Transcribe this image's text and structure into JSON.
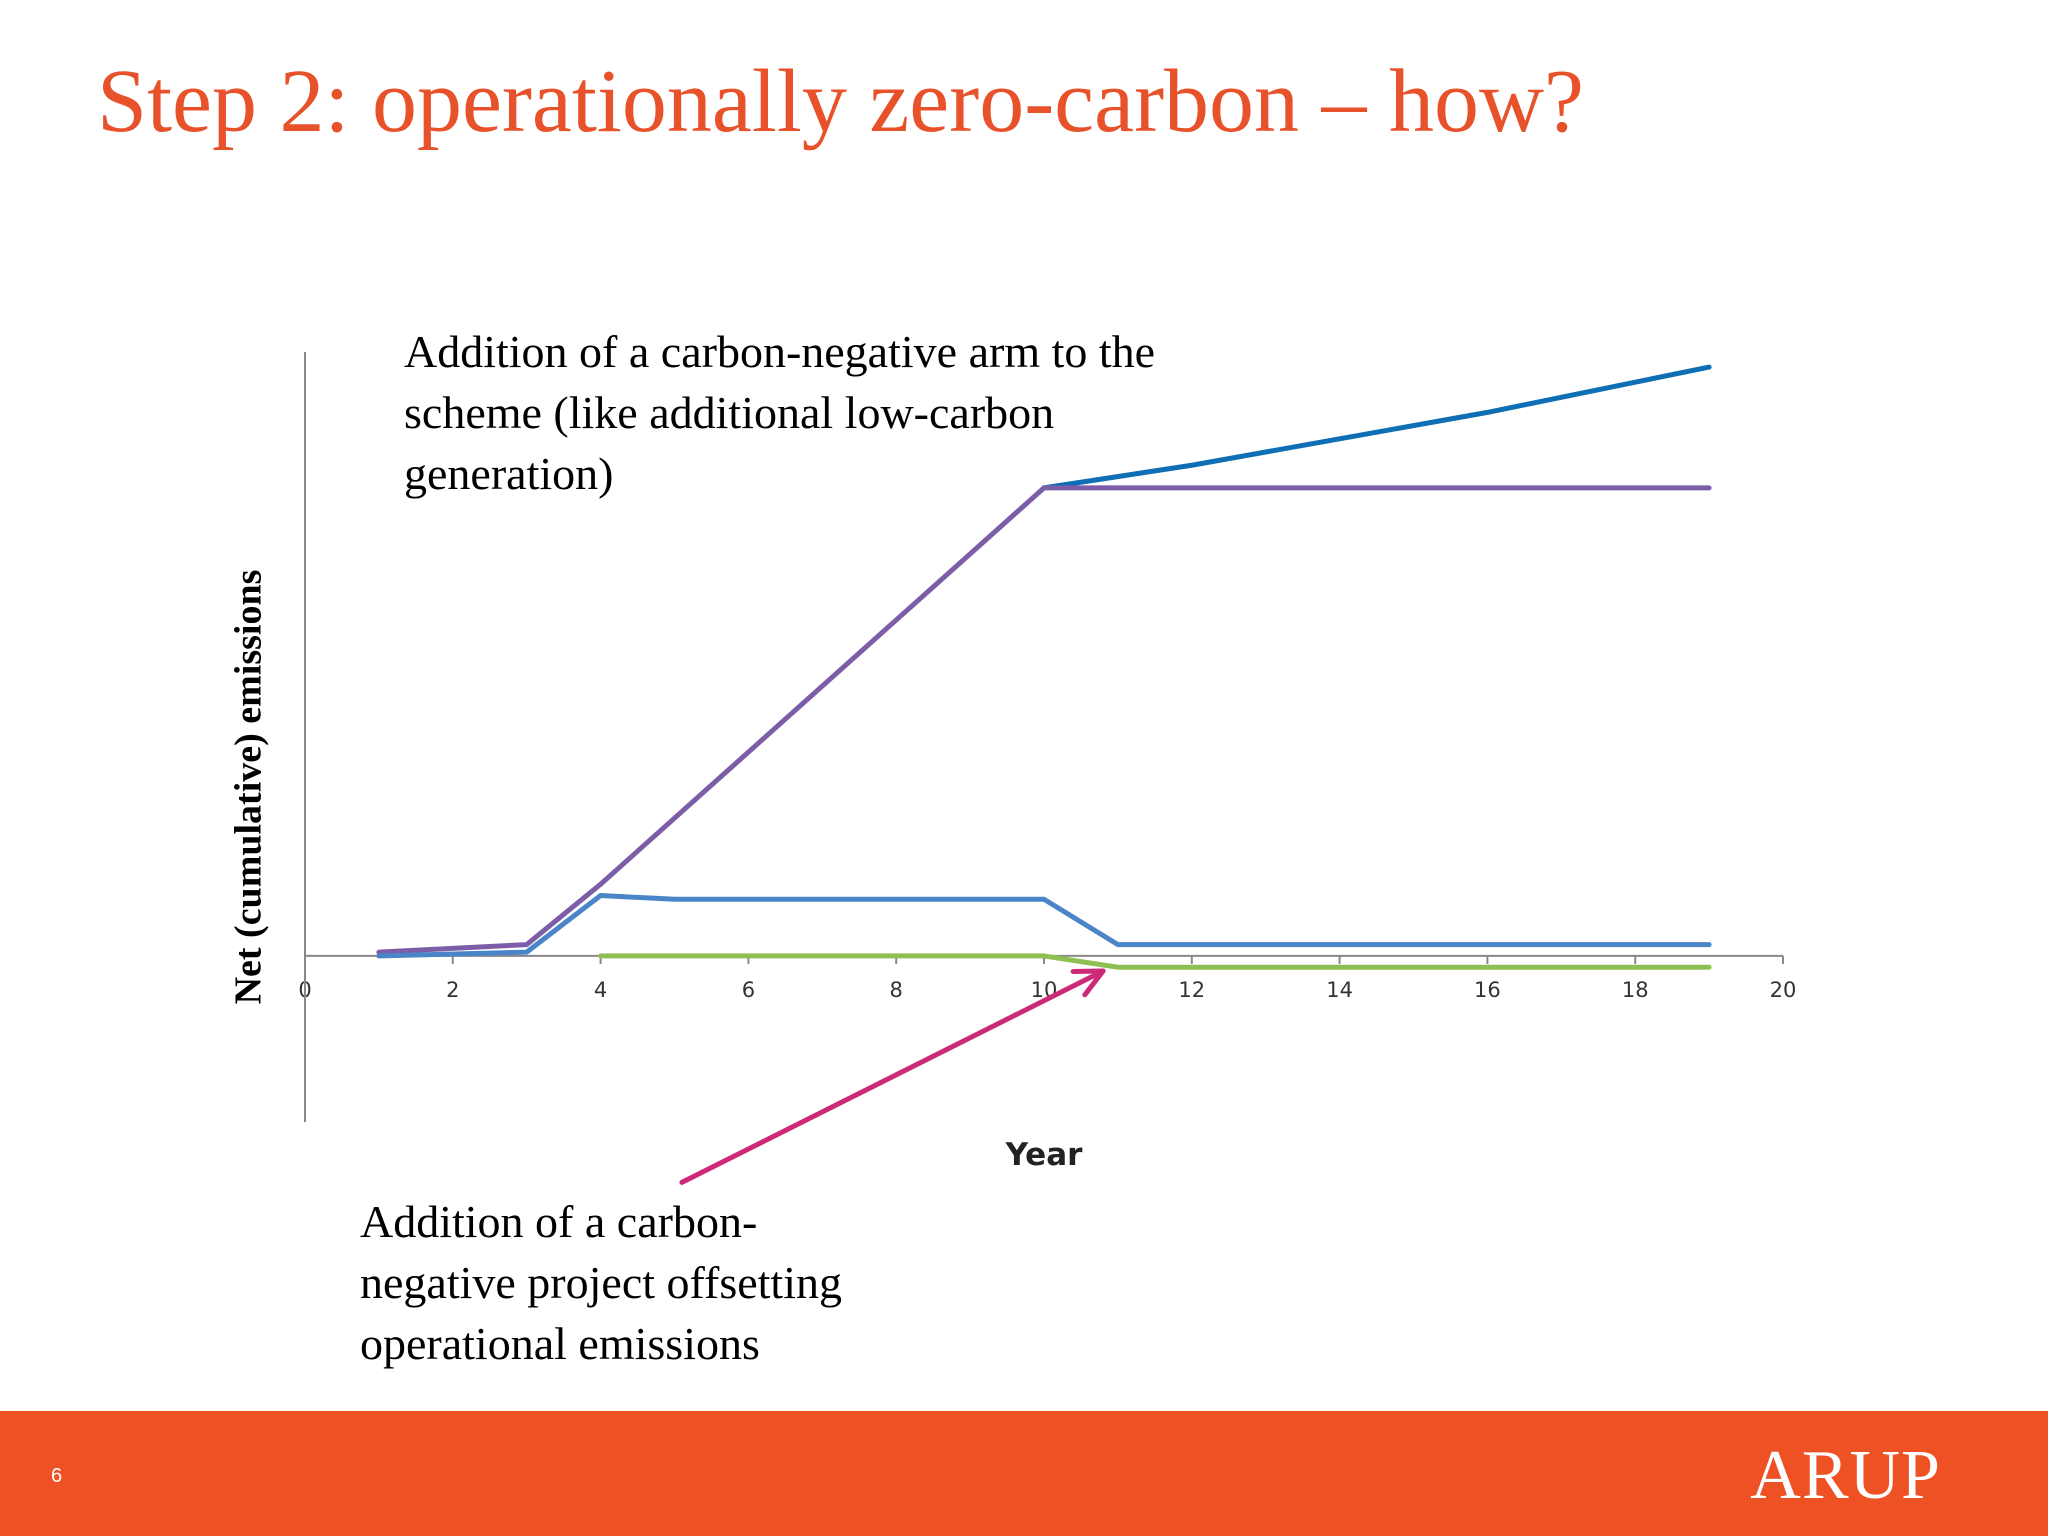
{
  "slide": {
    "title": "Step 2: operationally zero-carbon – how?",
    "page_number": "6",
    "logo_text": "ARUP",
    "colors": {
      "accent": "#e8522b",
      "footer": "#ee5123"
    }
  },
  "annotations": {
    "top": [
      "Addition of a carbon-negative arm to the",
      "scheme (like additional low-carbon",
      "generation)"
    ],
    "bottom": [
      "Addition of a carbon-",
      "negative project offsetting",
      "operational emissions"
    ]
  },
  "chart_data": {
    "type": "line",
    "title": "",
    "xlabel": "Year",
    "ylabel": "Net (cumulative) emissions",
    "xlim": [
      0,
      20
    ],
    "ylim": [
      -2.2,
      8
    ],
    "x_ticks": [
      "0",
      "2",
      "4",
      "6",
      "8",
      "10",
      "12",
      "14",
      "16",
      "18",
      "20"
    ],
    "y_ticks_shown": false,
    "grid": false,
    "legend": "none",
    "series": [
      {
        "color": "#0e6fb5",
        "x": [
          10,
          12,
          14,
          16,
          18,
          19
        ],
        "y": [
          6.2,
          6.5,
          6.85,
          7.2,
          7.6,
          7.8
        ]
      },
      {
        "color": "#7b5ea7",
        "x": [
          1,
          3,
          4,
          10,
          19
        ],
        "y": [
          0.05,
          0.15,
          0.95,
          6.2,
          6.2
        ]
      },
      {
        "color": "#4a85c8",
        "x": [
          1,
          3,
          4,
          5,
          10,
          11,
          19
        ],
        "y": [
          0,
          0.05,
          0.8,
          0.75,
          0.75,
          0.15,
          0.15
        ]
      },
      {
        "color": "#8fbf52",
        "x": [
          4,
          10,
          11,
          19
        ],
        "y": [
          0,
          0,
          -0.15,
          -0.15
        ]
      }
    ],
    "arrow": {
      "color": "#cc2a78",
      "from": [
        5.1,
        -3.0
      ],
      "to": [
        10.8,
        -0.2
      ]
    }
  }
}
